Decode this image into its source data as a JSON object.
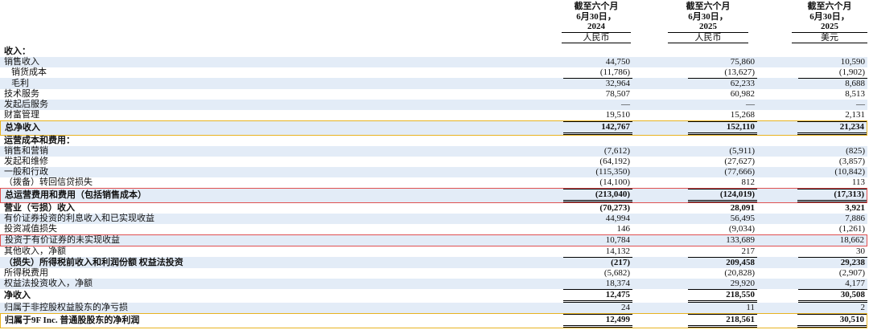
{
  "header": {
    "columns": [
      {
        "period": "截至六个月",
        "date": "6月30日，",
        "year": "2024",
        "currency": "人民币"
      },
      {
        "period": "截至六个月",
        "date": "6月30日，",
        "year": "2025",
        "currency": "人民币"
      },
      {
        "period": "截至六个月",
        "date": "6月30日，",
        "year": "2025",
        "currency": "美元"
      }
    ]
  },
  "rows": [
    {
      "label": "收入："
    },
    {
      "label": "销售收入",
      "values": [
        "44,750",
        "75,860",
        "10,590"
      ]
    },
    {
      "label": "销货成本",
      "values": [
        "(11,786)",
        "(13,627)",
        "(1,902)"
      ]
    },
    {
      "label": "毛利",
      "values": [
        "32,964",
        "62,233",
        "8,688"
      ]
    },
    {
      "label": "技术服务",
      "values": [
        "78,507",
        "60,982",
        "8,513"
      ]
    },
    {
      "label": "发起后服务",
      "values": [
        "—",
        "—",
        "—"
      ]
    },
    {
      "label": "财富管理",
      "values": [
        "19,510",
        "15,268",
        "2,131"
      ]
    },
    {
      "label": "总净收入",
      "values": [
        "142,767",
        "152,110",
        "21,234"
      ]
    },
    {
      "label": "运营成本和费用："
    },
    {
      "label": "销售和营销",
      "values": [
        "(7,612)",
        "(5,911)",
        "(825)"
      ]
    },
    {
      "label": "发起和维修",
      "values": [
        "(64,192)",
        "(27,627)",
        "(3,857)"
      ]
    },
    {
      "label": "一般和行政",
      "values": [
        "(115,350)",
        "(77,666)",
        "(10,842)"
      ]
    },
    {
      "label": "（拨备）转回信贷损失",
      "values": [
        "(14,100)",
        "812",
        "113"
      ]
    },
    {
      "label": "总运营费用和费用（包括销售成本）",
      "values": [
        "(213,040)",
        "(124,019)",
        "(17,313)"
      ]
    },
    {
      "label": "营业（亏损）收入",
      "values": [
        "(70,273)",
        "28,091",
        "3,921"
      ]
    },
    {
      "label": "有价证券投资的利息收入和已实现收益",
      "values": [
        "44,994",
        "56,495",
        "7,886"
      ]
    },
    {
      "label": "投资减值损失",
      "values": [
        "146",
        "(9,034)",
        "(1,261)"
      ]
    },
    {
      "label": "投资于有价证券的未实现收益",
      "values": [
        "10,784",
        "133,689",
        "18,662"
      ]
    },
    {
      "label": "其他收入，净额",
      "values": [
        "14,132",
        "217",
        "30"
      ]
    },
    {
      "label": "（损失）所得税前收入和利润份额 权益法投资",
      "values": [
        "(217)",
        "209,458",
        "29,238"
      ]
    },
    {
      "label": "所得税费用",
      "values": [
        "(5,682)",
        "(20,828)",
        "(2,907)"
      ]
    },
    {
      "label": "权益法投资收入，净额",
      "values": [
        "18,374",
        "29,920",
        "4,177"
      ]
    },
    {
      "label": "净收入",
      "values": [
        "12,475",
        "218,550",
        "30,508"
      ]
    },
    {
      "label": "归属于非控股权益股东的净亏损",
      "values": [
        "24",
        "11",
        "2"
      ]
    },
    {
      "label": "归属于9F Inc. 普通股股东的净利润",
      "values": [
        "12,499",
        "218,561",
        "30,510"
      ]
    }
  ]
}
